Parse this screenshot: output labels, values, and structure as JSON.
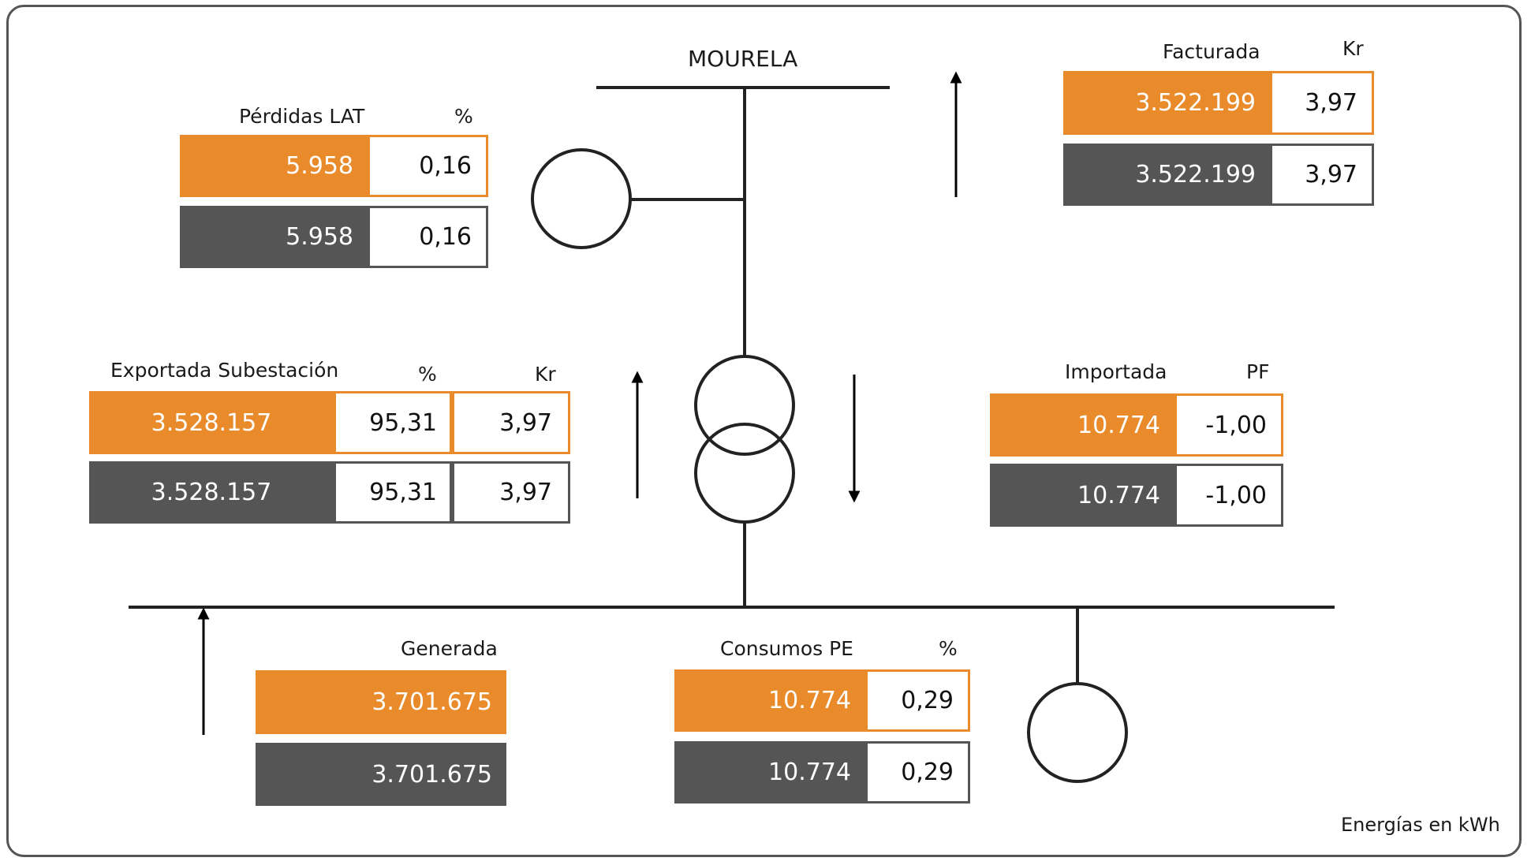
{
  "substation": "MOURELA",
  "footer": "Energías en kWh",
  "colors": {
    "orange": "#e98b2a",
    "gray": "#555555",
    "line": "#1a1a1a"
  },
  "perdidas": {
    "label": "Pérdidas LAT",
    "unit": "%",
    "orange": [
      "5.958",
      "0,16"
    ],
    "gray": [
      "5.958",
      "0,16"
    ]
  },
  "facturada": {
    "label": "Facturada",
    "unit": "Kr",
    "orange": [
      "3.522.199",
      "3,97"
    ],
    "gray": [
      "3.522.199",
      "3,97"
    ]
  },
  "exportada": {
    "label": "Exportada Subestación",
    "unit1": "%",
    "unit2": "Kr",
    "orange": [
      "3.528.157",
      "95,31",
      "3,97"
    ],
    "gray": [
      "3.528.157",
      "95,31",
      "3,97"
    ]
  },
  "importada": {
    "label": "Importada",
    "unit": "PF",
    "orange": [
      "10.774",
      "-1,00"
    ],
    "gray": [
      "10.774",
      "-1,00"
    ]
  },
  "generada": {
    "label": "Generada",
    "orange": [
      "3.701.675"
    ],
    "gray": [
      "3.701.675"
    ]
  },
  "consumos": {
    "label": "Consumos PE",
    "unit": "%",
    "orange": [
      "10.774",
      "0,29"
    ],
    "gray": [
      "10.774",
      "0,29"
    ]
  }
}
